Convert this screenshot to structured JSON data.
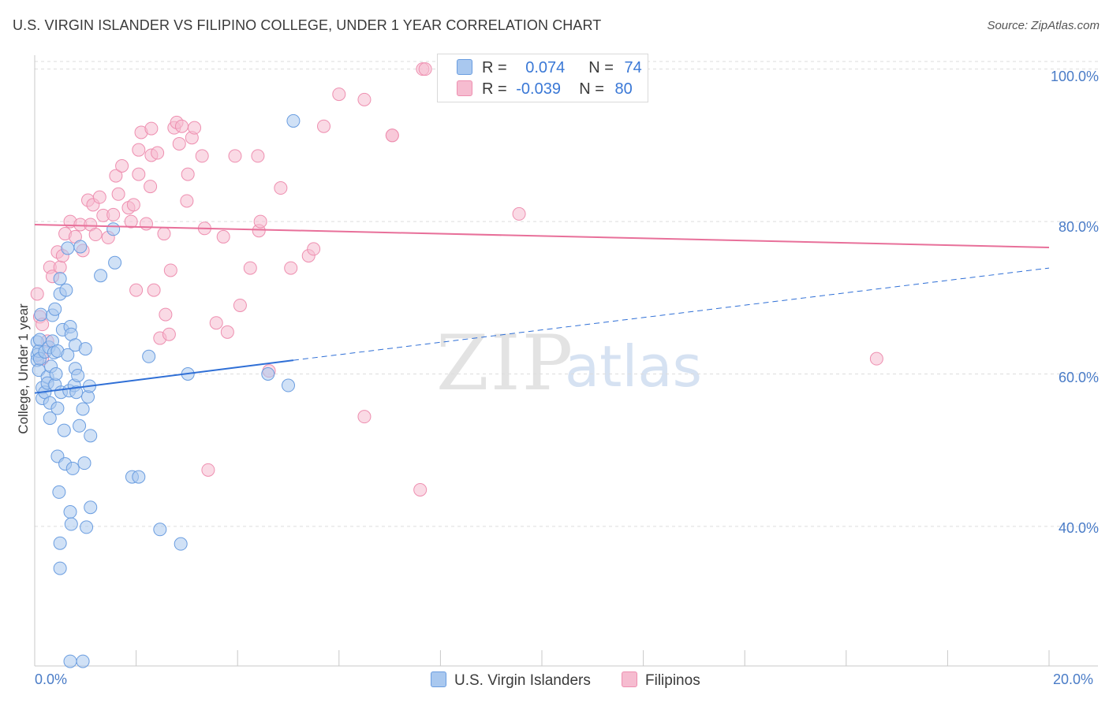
{
  "title": "U.S. VIRGIN ISLANDER VS FILIPINO COLLEGE, UNDER 1 YEAR CORRELATION CHART",
  "source": "Source: ZipAtlas.com",
  "watermark": {
    "zip": "ZIP",
    "atlas": "atlas"
  },
  "legend": {
    "rows": [
      {
        "r_label": "R =",
        "r_value": "0.074",
        "n_label": "N =",
        "n_value": "74"
      },
      {
        "r_label": "R =",
        "r_value": "-0.039",
        "n_label": "N =",
        "n_value": "80"
      }
    ]
  },
  "bottom_legend": [
    "U.S. Virgin Islanders",
    "Filipinos"
  ],
  "colors": {
    "blue_fill": "#a9c8ef",
    "blue_stroke": "#6a9de0",
    "blue_line": "#2f6fd6",
    "pink_fill": "#f6bcd0",
    "pink_stroke": "#ee8fb0",
    "pink_line": "#e8709a",
    "tick_text": "#4a7cc7",
    "grid": "#dddddd"
  },
  "chart_data": {
    "type": "scatter",
    "title": "U.S. VIRGIN ISLANDER VS FILIPINO COLLEGE, UNDER 1 YEAR CORRELATION CHART",
    "xlabel": "",
    "ylabel": "College, Under 1 year",
    "x_tick_labels": [
      "0.0%",
      "20.0%"
    ],
    "y_tick_labels": [
      "100.0%",
      "80.0%",
      "60.0%",
      "40.0%"
    ],
    "xlim": [
      0,
      20
    ],
    "ylim": [
      22,
      101
    ],
    "y_ticks": [
      100,
      80,
      60,
      40
    ],
    "grid": true,
    "legend_placement": "top-center",
    "series": [
      {
        "name": "U.S. Virgin Islanders",
        "r": 0.074,
        "n": 74,
        "trend": {
          "x": [
            0,
            5.1
          ],
          "y": [
            57.5,
            61.8
          ]
        },
        "trend_extension": {
          "x": [
            5.1,
            20
          ],
          "y": [
            61.8,
            73.9
          ]
        },
        "points": [
          [
            0.05,
            64.2
          ],
          [
            0.05,
            62.5
          ],
          [
            0.05,
            61.8
          ],
          [
            0.08,
            60.5
          ],
          [
            0.08,
            63.0
          ],
          [
            0.1,
            64.5
          ],
          [
            0.1,
            62.0
          ],
          [
            0.12,
            67.8
          ],
          [
            0.15,
            58.2
          ],
          [
            0.15,
            56.8
          ],
          [
            0.2,
            62.9
          ],
          [
            0.2,
            57.6
          ],
          [
            0.25,
            59.6
          ],
          [
            0.25,
            58.8
          ],
          [
            0.28,
            63.5
          ],
          [
            0.3,
            56.2
          ],
          [
            0.3,
            54.2
          ],
          [
            0.32,
            61.0
          ],
          [
            0.35,
            67.7
          ],
          [
            0.35,
            64.3
          ],
          [
            0.38,
            62.8
          ],
          [
            0.4,
            58.6
          ],
          [
            0.4,
            68.5
          ],
          [
            0.42,
            60.0
          ],
          [
            0.45,
            63.0
          ],
          [
            0.45,
            55.5
          ],
          [
            0.45,
            49.2
          ],
          [
            0.48,
            44.5
          ],
          [
            0.5,
            72.5
          ],
          [
            0.5,
            70.5
          ],
          [
            0.5,
            37.8
          ],
          [
            0.5,
            34.5
          ],
          [
            0.52,
            57.6
          ],
          [
            0.55,
            65.8
          ],
          [
            0.58,
            52.6
          ],
          [
            0.6,
            48.2
          ],
          [
            0.62,
            71.0
          ],
          [
            0.65,
            76.5
          ],
          [
            0.65,
            62.5
          ],
          [
            0.68,
            57.8
          ],
          [
            0.7,
            66.2
          ],
          [
            0.7,
            41.9
          ],
          [
            0.72,
            65.2
          ],
          [
            0.72,
            40.3
          ],
          [
            0.75,
            47.6
          ],
          [
            0.78,
            58.5
          ],
          [
            0.8,
            63.8
          ],
          [
            0.8,
            60.7
          ],
          [
            0.82,
            57.6
          ],
          [
            0.85,
            59.8
          ],
          [
            0.88,
            53.2
          ],
          [
            0.9,
            76.7
          ],
          [
            0.95,
            55.4
          ],
          [
            0.98,
            48.3
          ],
          [
            1.0,
            63.3
          ],
          [
            1.02,
            39.9
          ],
          [
            1.05,
            57.0
          ],
          [
            1.08,
            58.4
          ],
          [
            1.1,
            51.9
          ],
          [
            1.1,
            42.5
          ],
          [
            1.3,
            72.9
          ],
          [
            1.58,
            74.6
          ],
          [
            1.55,
            79.0
          ],
          [
            1.92,
            46.5
          ],
          [
            2.05,
            46.5
          ],
          [
            2.25,
            62.3
          ],
          [
            2.47,
            39.6
          ],
          [
            2.88,
            37.7
          ],
          [
            3.02,
            60.0
          ],
          [
            4.6,
            60.0
          ],
          [
            5.0,
            58.5
          ],
          [
            5.1,
            93.2
          ],
          [
            0.7,
            22.3
          ],
          [
            0.95,
            22.3
          ]
        ]
      },
      {
        "name": "Filipinos",
        "r": -0.039,
        "n": 80,
        "trend": {
          "x": [
            0,
            20
          ],
          "y": [
            79.6,
            76.6
          ]
        },
        "points": [
          [
            0.05,
            70.5
          ],
          [
            0.1,
            67.5
          ],
          [
            0.15,
            66.5
          ],
          [
            0.25,
            64.3
          ],
          [
            0.3,
            74.0
          ],
          [
            0.35,
            72.8
          ],
          [
            0.45,
            76.0
          ],
          [
            0.5,
            74.0
          ],
          [
            0.55,
            75.5
          ],
          [
            0.6,
            78.4
          ],
          [
            0.7,
            80.0
          ],
          [
            0.8,
            78.0
          ],
          [
            0.9,
            79.6
          ],
          [
            0.95,
            76.2
          ],
          [
            1.05,
            82.8
          ],
          [
            1.1,
            79.6
          ],
          [
            1.15,
            82.2
          ],
          [
            1.2,
            78.3
          ],
          [
            1.28,
            83.2
          ],
          [
            1.35,
            80.8
          ],
          [
            1.45,
            77.9
          ],
          [
            1.55,
            80.9
          ],
          [
            1.6,
            86.0
          ],
          [
            1.65,
            83.6
          ],
          [
            1.72,
            87.3
          ],
          [
            1.85,
            81.8
          ],
          [
            1.9,
            80.0
          ],
          [
            1.95,
            82.2
          ],
          [
            2.0,
            71.0
          ],
          [
            2.05,
            86.2
          ],
          [
            2.05,
            89.4
          ],
          [
            2.1,
            91.7
          ],
          [
            2.2,
            79.7
          ],
          [
            2.28,
            84.6
          ],
          [
            2.3,
            88.7
          ],
          [
            2.3,
            92.2
          ],
          [
            2.35,
            71.0
          ],
          [
            2.42,
            89.0
          ],
          [
            2.47,
            64.7
          ],
          [
            2.55,
            78.4
          ],
          [
            2.58,
            67.8
          ],
          [
            2.65,
            65.2
          ],
          [
            2.68,
            73.6
          ],
          [
            2.75,
            92.3
          ],
          [
            2.8,
            93.0
          ],
          [
            2.85,
            90.2
          ],
          [
            2.9,
            92.5
          ],
          [
            3.0,
            82.7
          ],
          [
            3.02,
            86.2
          ],
          [
            3.1,
            91.0
          ],
          [
            3.15,
            92.3
          ],
          [
            3.3,
            88.6
          ],
          [
            3.35,
            79.1
          ],
          [
            3.42,
            47.4
          ],
          [
            3.58,
            66.7
          ],
          [
            3.72,
            78.0
          ],
          [
            3.8,
            65.5
          ],
          [
            3.95,
            88.6
          ],
          [
            4.05,
            69.0
          ],
          [
            4.25,
            73.9
          ],
          [
            4.4,
            88.6
          ],
          [
            4.42,
            78.8
          ],
          [
            4.45,
            80.0
          ],
          [
            4.62,
            60.4
          ],
          [
            4.85,
            84.4
          ],
          [
            5.05,
            73.9
          ],
          [
            5.4,
            75.5
          ],
          [
            5.5,
            76.4
          ],
          [
            5.7,
            92.5
          ],
          [
            6.0,
            96.7
          ],
          [
            6.5,
            54.4
          ],
          [
            6.5,
            96.0
          ],
          [
            7.05,
            91.3
          ],
          [
            7.05,
            91.3
          ],
          [
            7.6,
            44.8
          ],
          [
            7.65,
            100.0
          ],
          [
            7.7,
            100.0
          ],
          [
            9.55,
            81.0
          ],
          [
            16.6,
            62.0
          ],
          [
            0.15,
            62.0
          ]
        ]
      }
    ]
  }
}
